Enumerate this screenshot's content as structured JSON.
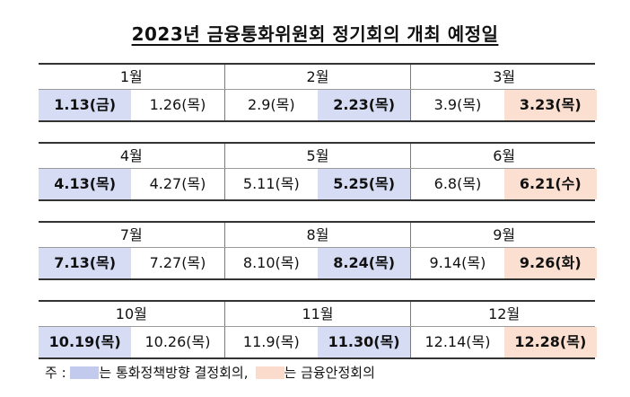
{
  "title": "2023년 금융통화위원회 정기회의 개최 예정일",
  "colors": {
    "monetary_policy": "#d5dcf3",
    "financial_stability": "#fbdfd1",
    "rule": "#333333"
  },
  "blocks": [
    {
      "months": [
        "1월",
        "2월",
        "3월"
      ],
      "dates": [
        {
          "text": "1.13(금)",
          "type": "mpc"
        },
        {
          "text": "1.26(목)",
          "type": "none"
        },
        {
          "text": "2.9(목)",
          "type": "none"
        },
        {
          "text": "2.23(목)",
          "type": "mpc"
        },
        {
          "text": "3.9(목)",
          "type": "none"
        },
        {
          "text": "3.23(목)",
          "type": "fsc"
        }
      ]
    },
    {
      "months": [
        "4월",
        "5월",
        "6월"
      ],
      "dates": [
        {
          "text": "4.13(목)",
          "type": "mpc"
        },
        {
          "text": "4.27(목)",
          "type": "none"
        },
        {
          "text": "5.11(목)",
          "type": "none"
        },
        {
          "text": "5.25(목)",
          "type": "mpc"
        },
        {
          "text": "6.8(목)",
          "type": "none"
        },
        {
          "text": "6.21(수)",
          "type": "fsc"
        }
      ]
    },
    {
      "months": [
        "7월",
        "8월",
        "9월"
      ],
      "dates": [
        {
          "text": "7.13(목)",
          "type": "mpc"
        },
        {
          "text": "7.27(목)",
          "type": "none"
        },
        {
          "text": "8.10(목)",
          "type": "none"
        },
        {
          "text": "8.24(목)",
          "type": "mpc"
        },
        {
          "text": "9.14(목)",
          "type": "none"
        },
        {
          "text": "9.26(화)",
          "type": "fsc"
        }
      ]
    },
    {
      "months": [
        "10월",
        "11월",
        "12월"
      ],
      "dates": [
        {
          "text": "10.19(목)",
          "type": "mpc"
        },
        {
          "text": "10.26(목)",
          "type": "none"
        },
        {
          "text": "11.9(목)",
          "type": "none"
        },
        {
          "text": "11.30(목)",
          "type": "mpc"
        },
        {
          "text": "12.14(목)",
          "type": "none"
        },
        {
          "text": "12.28(목)",
          "type": "fsc"
        }
      ]
    }
  ],
  "note": {
    "prefix": "주 : ",
    "mpc_label": "는 통화정책방향 결정회의,",
    "fsc_label": "는 금융안정회의"
  }
}
